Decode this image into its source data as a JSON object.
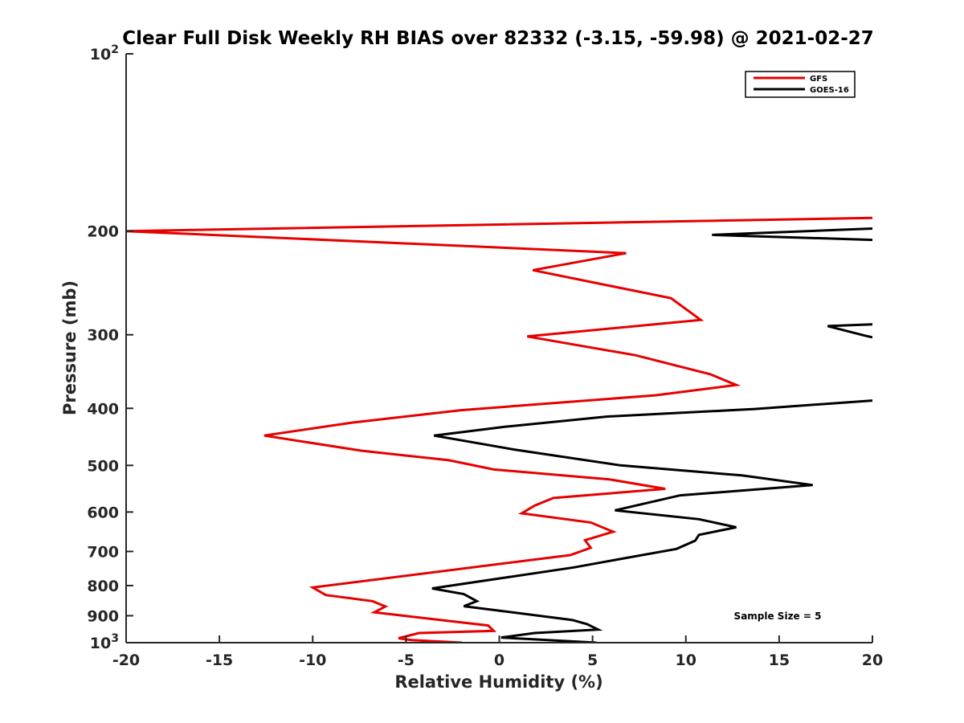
{
  "chart_data": {
    "type": "line",
    "title": "Clear Full Disk Weekly RH BIAS over 82332 (-3.15, -59.98) @ 2021-02-27",
    "xlabel": "Relative Humidity (%)",
    "ylabel": "Pressure (mb)",
    "xlim": [
      -20,
      20
    ],
    "ylim": [
      100,
      1000
    ],
    "y_scale": "log",
    "y_reversed": true,
    "x_ticks": [
      -20,
      -15,
      -10,
      -5,
      0,
      5,
      10,
      15,
      20
    ],
    "x_tick_labels": [
      "-20",
      "-15",
      "-10",
      "-5",
      "0",
      "5",
      "10",
      "15",
      "20"
    ],
    "y_ticks": [
      {
        "value": 100,
        "base": "10",
        "exp": "2"
      },
      {
        "value": 200,
        "label": "200"
      },
      {
        "value": 300,
        "label": "300"
      },
      {
        "value": 400,
        "label": "400"
      },
      {
        "value": 500,
        "label": "500"
      },
      {
        "value": 600,
        "label": "600"
      },
      {
        "value": 700,
        "label": "700"
      },
      {
        "value": 800,
        "label": "800"
      },
      {
        "value": 900,
        "label": "900"
      },
      {
        "value": 1000,
        "base": "10",
        "exp": "3"
      }
    ],
    "legend_position": "top-right",
    "grid": false,
    "annotation": "Sample Size = 5",
    "series": [
      {
        "name": "GFS",
        "color": "#e60000",
        "x": [
          20,
          -20,
          6.8,
          1.8,
          9.2,
          10.8,
          1.5,
          7.3,
          11.3,
          12.7,
          8.4,
          -2.1,
          -7.9,
          -12.6,
          -7.4,
          -2.7,
          -0.3,
          5.9,
          8.9,
          2.9,
          1.9,
          1.2,
          4.9,
          6.1,
          4.6,
          4.9,
          3.8,
          -10.0,
          -9.3,
          -6.8,
          -6.1,
          -6.7,
          -0.6,
          -0.3,
          -4.3,
          -5.4,
          -4.7,
          -2.0
        ],
        "y": [
          190,
          200,
          218,
          233,
          260,
          283,
          302,
          325,
          350,
          365,
          380,
          403,
          423,
          445,
          472,
          490,
          508,
          528,
          548,
          568,
          585,
          603,
          625,
          648,
          670,
          690,
          710,
          806,
          830,
          850,
          868,
          888,
          935,
          955,
          963,
          983,
          990,
          1000
        ]
      },
      {
        "name": "GOES-16",
        "color": "#000000",
        "x": [
          20,
          11.4,
          20,
          null,
          20,
          17.6,
          19.6,
          20,
          null,
          20,
          13.7,
          5.8,
          0.3,
          -3.5,
          0.8,
          6.5,
          13.0,
          16.8,
          9.7,
          6.2,
          10.7,
          12.7,
          10.7,
          10.5,
          9.5,
          6.6,
          4.0,
          -2.7,
          -3.6,
          -1.9,
          -1.2,
          -1.9,
          3.9,
          4.7,
          5.3,
          1.9,
          0.1,
          5.2
        ],
        "y": [
          198,
          203,
          207,
          null,
          288,
          290,
          301,
          303,
          null,
          388,
          401,
          413,
          430,
          445,
          470,
          500,
          520,
          540,
          562,
          596,
          617,
          637,
          656,
          671,
          693,
          720,
          745,
          801,
          809,
          827,
          850,
          867,
          915,
          930,
          950,
          963,
          980,
          1000
        ]
      }
    ]
  }
}
